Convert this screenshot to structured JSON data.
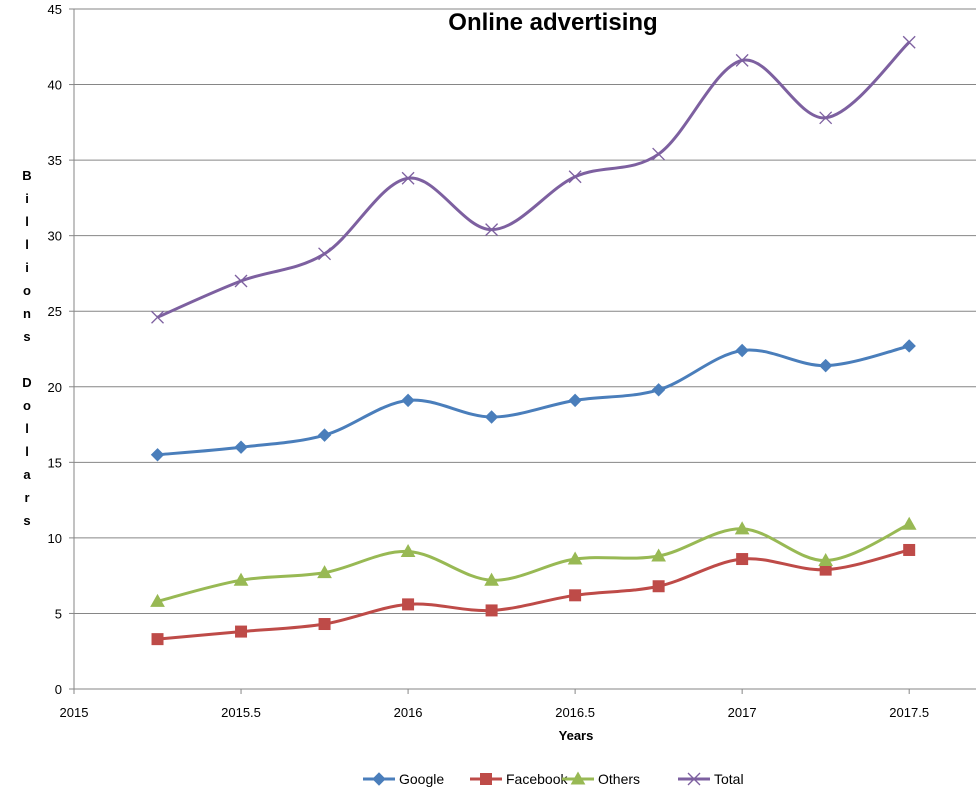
{
  "chart_data": {
    "type": "line",
    "title": "Online advertising",
    "xlabel": "Years",
    "ylabel": "Billions Dollars",
    "xlim": [
      2015,
      2017.7
    ],
    "ylim": [
      0,
      45
    ],
    "x_ticks": [
      "2015",
      "2015.5",
      "2016",
      "2016.5",
      "2017",
      "2017.5"
    ],
    "y_ticks": [
      "0",
      "5",
      "10",
      "15",
      "20",
      "25",
      "30",
      "35",
      "40",
      "45"
    ],
    "grid": "horizontal",
    "legend_position": "bottom",
    "x": [
      2015.25,
      2015.5,
      2015.75,
      2016,
      2016.25,
      2016.5,
      2016.75,
      2017,
      2017.25,
      2017.5
    ],
    "series": [
      {
        "name": "Google",
        "color": "#4a7ebb",
        "marker": "diamond",
        "values": [
          15.5,
          16.0,
          16.8,
          19.1,
          18.0,
          19.1,
          19.8,
          22.4,
          21.4,
          22.7
        ]
      },
      {
        "name": "Facebook",
        "color": "#be4b48",
        "marker": "square",
        "values": [
          3.3,
          3.8,
          4.3,
          5.6,
          5.2,
          6.2,
          6.8,
          8.6,
          7.9,
          9.2
        ]
      },
      {
        "name": "Others",
        "color": "#98b954",
        "marker": "triangle",
        "values": [
          5.8,
          7.2,
          7.7,
          9.1,
          7.2,
          8.6,
          8.8,
          10.6,
          8.5,
          10.9
        ]
      },
      {
        "name": "Total",
        "color": "#7d60a0",
        "marker": "x",
        "values": [
          24.6,
          27.0,
          28.8,
          33.8,
          30.4,
          33.9,
          35.4,
          41.6,
          37.8,
          42.8
        ]
      }
    ]
  }
}
